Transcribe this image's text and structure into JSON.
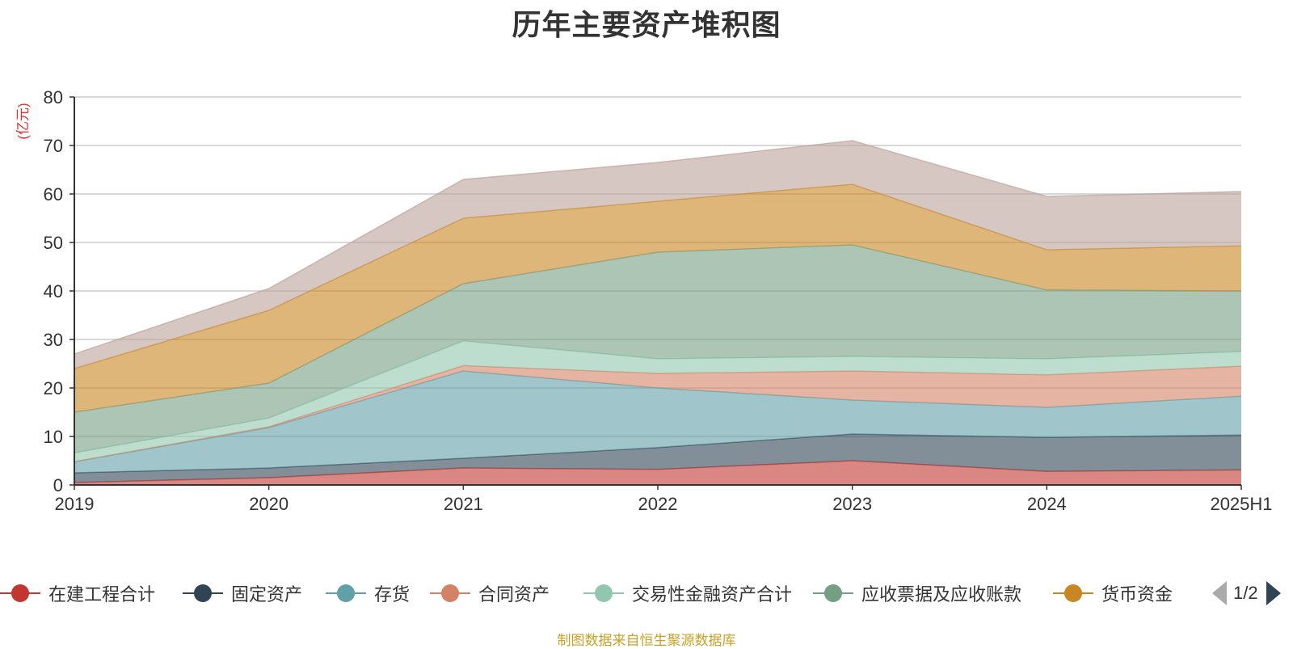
{
  "chart_data": {
    "type": "area",
    "stacked": true,
    "title": "历年主要资产堆积图",
    "ylabel": "(亿元)",
    "ylim": [
      0,
      80
    ],
    "yticks": [
      0,
      10,
      20,
      30,
      40,
      50,
      60,
      70,
      80
    ],
    "grid": true,
    "categories": [
      "2019",
      "2020",
      "2021",
      "2022",
      "2023",
      "2024",
      "2025H1"
    ],
    "series": [
      {
        "name": "在建工程合计",
        "color": "#c23531",
        "values": [
          0.5,
          1.5,
          3.5,
          3.2,
          5.0,
          2.8,
          3.1
        ]
      },
      {
        "name": "固定资产",
        "color": "#2f4554",
        "values": [
          2.0,
          2.0,
          2.0,
          4.5,
          5.5,
          7.0,
          7.2
        ]
      },
      {
        "name": "存货",
        "color": "#61a0a8",
        "values": [
          2.3,
          8.3,
          18.0,
          12.3,
          7.0,
          6.2,
          8.0
        ]
      },
      {
        "name": "合同资产",
        "color": "#d48265",
        "values": [
          0.0,
          0.2,
          1.1,
          3.0,
          6.0,
          6.7,
          6.2
        ]
      },
      {
        "name": "交易性金融资产合计",
        "color": "#91c7ae",
        "values": [
          1.8,
          1.8,
          5.1,
          3.0,
          3.0,
          3.3,
          3.0
        ]
      },
      {
        "name": "应收票据及应收账款",
        "color": "#749f83",
        "values": [
          8.4,
          7.2,
          11.8,
          22.0,
          23.0,
          14.2,
          12.5
        ]
      },
      {
        "name": "货币资金",
        "color": "#ca8622",
        "values": [
          9.0,
          15.0,
          13.5,
          10.5,
          12.5,
          8.3,
          9.3
        ]
      },
      {
        "name": "",
        "color": "#bda29a",
        "values": [
          3.0,
          4.5,
          8.0,
          8.0,
          9.0,
          11.0,
          11.2
        ]
      }
    ],
    "legend": {
      "position": "bottom",
      "page": "1/2"
    },
    "source": "制图数据来自恒生聚源数据库"
  }
}
